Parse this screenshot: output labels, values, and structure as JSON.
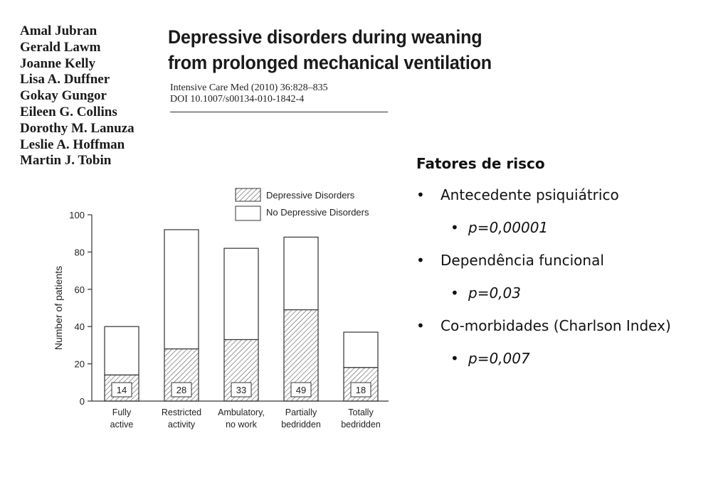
{
  "paper": {
    "authors": [
      "Amal Jubran",
      "Gerald Lawm",
      "Joanne Kelly",
      "Lisa A. Duffner",
      "Gokay Gungor",
      "Eileen G. Collins",
      "Dorothy M. Lanuza",
      "Leslie A. Hoffman",
      "Martin J. Tobin"
    ],
    "title_line1": "Depressive disorders during weaning",
    "title_line2": "from prolonged mechanical ventilation",
    "citation_line1": "Intensive Care Med (2010) 36:828–835",
    "citation_line2": "DOI 10.1007/s00134-010-1842-4"
  },
  "chart_data": {
    "type": "bar",
    "stacked": true,
    "categories": [
      "Fully active",
      "Restricted activity",
      "Ambulatory, no work",
      "Partially bedridden",
      "Totally bedridden"
    ],
    "category_lines": [
      [
        "Fully",
        "active"
      ],
      [
        "Restricted",
        "activity"
      ],
      [
        "Ambulatory,",
        "no work"
      ],
      [
        "Partially",
        "bedridden"
      ],
      [
        "Totally",
        "bedridden"
      ]
    ],
    "series": [
      {
        "name": "Depressive Disorders",
        "values": [
          14,
          28,
          33,
          49,
          18
        ],
        "pattern": "hatched"
      },
      {
        "name": "No Depressive Disorders",
        "values": [
          26,
          64,
          49,
          39,
          19
        ],
        "pattern": "white"
      }
    ],
    "data_labels": [
      "14",
      "28",
      "33",
      "49",
      "18"
    ],
    "ylabel": "Number of patients",
    "xlabel": "",
    "ylim": [
      0,
      100
    ],
    "yticks": [
      0,
      20,
      40,
      60,
      80,
      100
    ],
    "legend_position": "top-right",
    "grid": false
  },
  "risk_factors": {
    "heading": "Fatores de risco",
    "bullet": "•",
    "items": [
      {
        "label": "Antecedente psiquiátrico",
        "detail": "p=0,00001"
      },
      {
        "label": "Dependência funcional",
        "detail": "p=0,03"
      },
      {
        "label": "Co-morbidades (Charlson Index)",
        "detail": "p=0,007"
      }
    ]
  }
}
